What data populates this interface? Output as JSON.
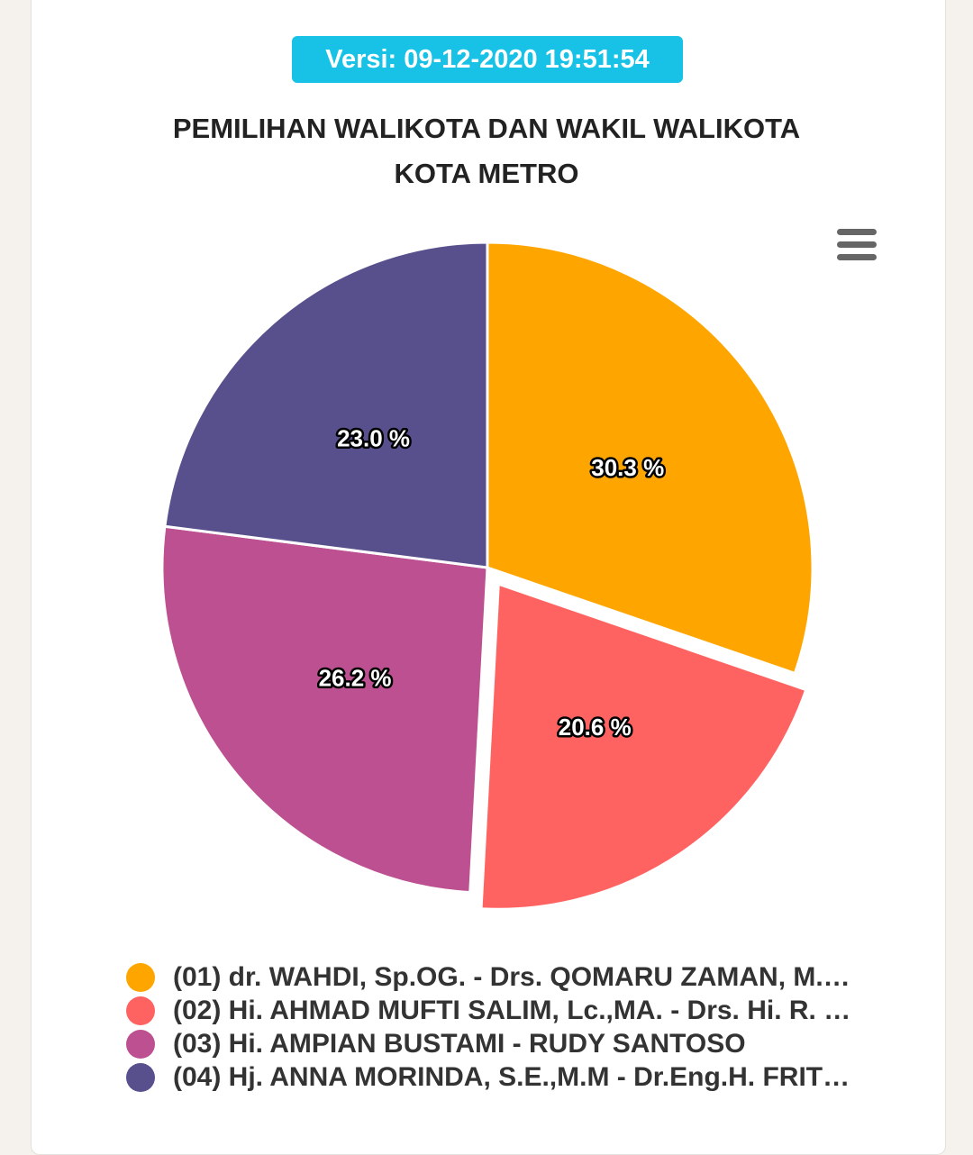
{
  "version_badge": "Versi: 09-12-2020 19:51:54",
  "chart_data": {
    "type": "pie",
    "title_lines": [
      "PEMILIHAN WALIKOTA DAN WAKIL WALIKOTA",
      "KOTA METRO"
    ],
    "slices": [
      {
        "label": "(01) dr. WAHDI, Sp.OG. - Drs. QOMARU ZAMAN, M.…",
        "value": 30.3,
        "data_label": "30.3 %",
        "color": "#ffa500",
        "exploded": false
      },
      {
        "label": "(02) Hi. AHMAD MUFTI SALIM, Lc.,MA. - Drs. Hi. R. …",
        "value": 20.6,
        "data_label": "20.6 %",
        "color": "#ff6361",
        "exploded": true
      },
      {
        "label": "(03) Hi. AMPIAN BUSTAMI - RUDY SANTOSO",
        "value": 26.2,
        "data_label": "26.2 %",
        "color": "#bc5090",
        "exploded": false
      },
      {
        "label": "(04) Hj. ANNA MORINDA, S.E.,M.M - Dr.Eng.H. FRIT…",
        "value": 23.0,
        "data_label": "23.0 %",
        "color": "#58508d",
        "exploded": false
      }
    ],
    "legend_position": "bottom",
    "start_angle": "12 o'clock, clockwise"
  },
  "menu_icon": "hamburger-menu-icon"
}
